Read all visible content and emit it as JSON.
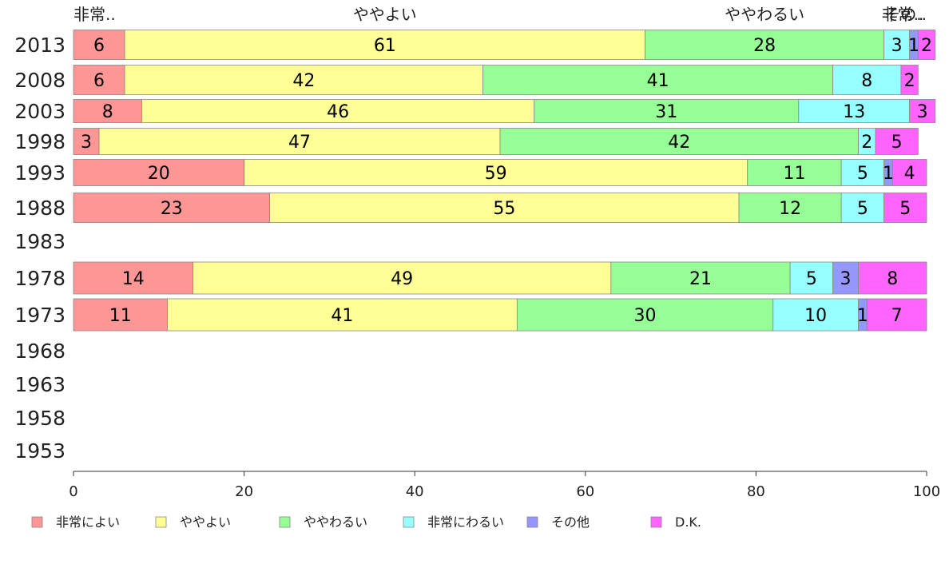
{
  "chart_data": {
    "type": "bar",
    "orientation": "horizontal",
    "stacked": true,
    "title": "",
    "xlabel": "",
    "ylabel": "",
    "xlim": [
      0,
      100
    ],
    "x_ticks": [
      0,
      20,
      40,
      60,
      80,
      100
    ],
    "grid": false,
    "legend_position": "bottom",
    "categories": [
      "2013",
      "2008",
      "2003",
      "1998",
      "1993",
      "1988",
      "1983",
      "1978",
      "1973",
      "1968",
      "1963",
      "1958",
      "1953"
    ],
    "series": [
      {
        "name": "非常によい",
        "short": "非常..",
        "color": "#FF9696",
        "values": [
          6,
          6,
          8,
          3,
          20,
          23,
          null,
          14,
          11,
          null,
          null,
          null,
          null
        ]
      },
      {
        "name": "ややよい",
        "short": "ややよい",
        "color": "#FFFF96",
        "values": [
          61,
          42,
          46,
          47,
          59,
          55,
          null,
          49,
          41,
          null,
          null,
          null,
          null
        ]
      },
      {
        "name": "ややわるい",
        "short": "ややわるい",
        "color": "#96FF96",
        "values": [
          28,
          41,
          31,
          42,
          11,
          12,
          null,
          21,
          30,
          null,
          null,
          null,
          null
        ]
      },
      {
        "name": "非常にわるい",
        "short": "非常..",
        "color": "#96FFFF",
        "values": [
          3,
          8,
          13,
          2,
          5,
          5,
          null,
          5,
          10,
          null,
          null,
          null,
          null
        ]
      },
      {
        "name": "その他",
        "short": "その..",
        "color": "#9696FF",
        "values": [
          1,
          0,
          0,
          0,
          1,
          0,
          null,
          3,
          1,
          null,
          null,
          null,
          null
        ]
      },
      {
        "name": "D.K.",
        "short": "",
        "color": "#FF64FF",
        "values": [
          2,
          2,
          3,
          5,
          4,
          5,
          null,
          8,
          7,
          null,
          null,
          null,
          null
        ]
      }
    ]
  }
}
